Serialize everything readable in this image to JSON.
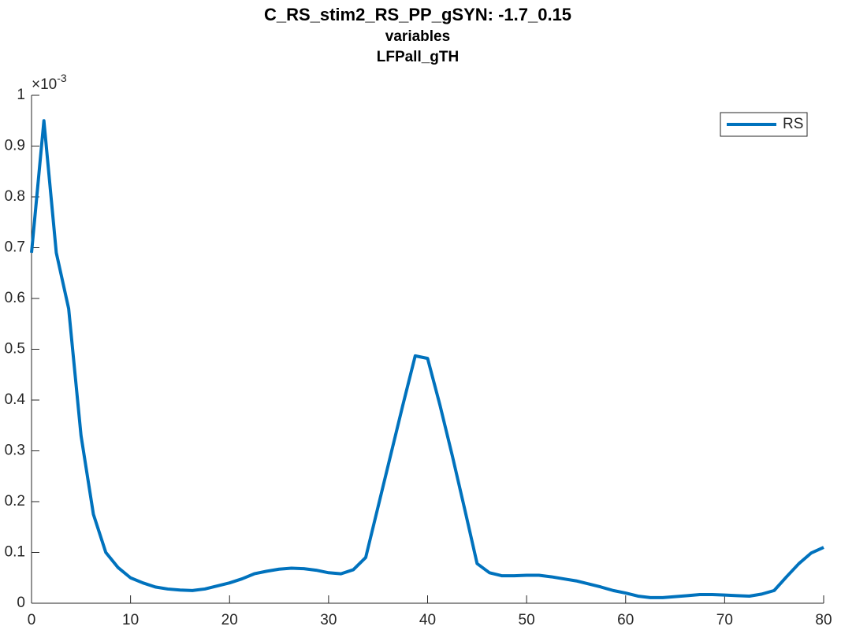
{
  "chart_data": {
    "type": "line",
    "title": "C_RS_stim2_RS_PP_gSYN: -1.7_0.15",
    "subtitles": [
      "variables",
      "LFPall_gTH"
    ],
    "y_exponent_label": {
      "base": "×10",
      "exponent": "-3"
    },
    "x": [
      0,
      1.25,
      2.5,
      3.75,
      5,
      6.25,
      7.5,
      8.75,
      10,
      11.25,
      12.5,
      13.75,
      15,
      16.25,
      17.5,
      18.75,
      20,
      21.25,
      22.5,
      23.75,
      25,
      26.25,
      27.5,
      28.75,
      30,
      31.25,
      32.5,
      33.75,
      35,
      36.25,
      37.5,
      38.75,
      40,
      41.25,
      42.5,
      43.75,
      45,
      46.25,
      47.5,
      48.75,
      50,
      51.25,
      52.5,
      53.75,
      55,
      56.25,
      57.5,
      58.75,
      60,
      61.25,
      62.5,
      63.75,
      65,
      66.25,
      67.5,
      68.75,
      70,
      71.25,
      72.5,
      73.75,
      75,
      76.25,
      77.5,
      78.75,
      80
    ],
    "series": [
      {
        "name": "RS",
        "color": "#0072bd",
        "values": [
          0.69,
          0.95,
          0.69,
          0.58,
          0.33,
          0.175,
          0.1,
          0.07,
          0.05,
          0.04,
          0.032,
          0.028,
          0.026,
          0.025,
          0.028,
          0.034,
          0.04,
          0.048,
          0.058,
          0.063,
          0.067,
          0.069,
          0.068,
          0.065,
          0.06,
          0.058,
          0.066,
          0.09,
          0.19,
          0.29,
          0.39,
          0.487,
          0.482,
          0.39,
          0.29,
          0.185,
          0.078,
          0.06,
          0.054,
          0.054,
          0.055,
          0.055,
          0.052,
          0.048,
          0.044,
          0.038,
          0.032,
          0.025,
          0.02,
          0.014,
          0.011,
          0.011,
          0.013,
          0.015,
          0.017,
          0.017,
          0.016,
          0.015,
          0.014,
          0.018,
          0.025,
          0.052,
          0.078,
          0.099,
          0.11
        ]
      }
    ],
    "xlim": [
      0,
      80
    ],
    "xticks": [
      0,
      10,
      20,
      30,
      40,
      50,
      60,
      70,
      80
    ],
    "ylim": [
      0,
      1
    ],
    "yticks": [
      0,
      0.1,
      0.2,
      0.3,
      0.4,
      0.5,
      0.6,
      0.7,
      0.8,
      0.9,
      1
    ],
    "grid": false,
    "legend_position": "upper-right"
  }
}
